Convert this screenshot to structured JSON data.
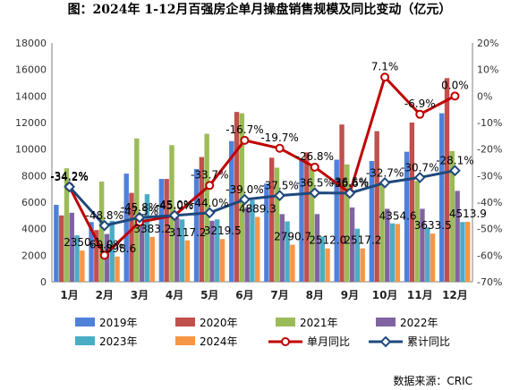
{
  "chart_data": {
    "type": "bar",
    "title": "图：2024年 1-12月百强房企单月操盘销售规模及同比变动（亿元）",
    "source": "数据来源：CRIC",
    "categories": [
      "1月",
      "2月",
      "3月",
      "4月",
      "5月",
      "6月",
      "7月",
      "8月",
      "9月",
      "10月",
      "11月",
      "12月"
    ],
    "ylim": [
      0,
      18000
    ],
    "yticks": [
      0,
      2000,
      4000,
      6000,
      8000,
      10000,
      12000,
      14000,
      16000,
      18000
    ],
    "y2lim": [
      -70,
      20
    ],
    "y2ticks": [
      "20%",
      "10%",
      "0%",
      "-10%",
      "-20%",
      "-30%",
      "-40%",
      "-50%",
      "-60%",
      "-70%"
    ],
    "series": [
      {
        "name": "2019年",
        "color": "#4f81d9",
        "values": [
          5800,
          4500,
          8150,
          7750,
          8500,
          10600,
          7400,
          9300,
          9200,
          9100,
          9800,
          12700
        ]
      },
      {
        "name": "2020年",
        "color": "#c0504d",
        "values": [
          5000,
          3900,
          6700,
          7750,
          9400,
          12800,
          9350,
          9750,
          11850,
          11350,
          12000,
          15350
        ]
      },
      {
        "name": "2021年",
        "color": "#9bbb59",
        "values": [
          8550,
          7550,
          10800,
          10300,
          11150,
          12700,
          8600,
          8700,
          8850,
          7300,
          7600,
          9850
        ]
      },
      {
        "name": "2022年",
        "color": "#8064a2",
        "values": [
          5200,
          3600,
          4800,
          4800,
          4600,
          5600,
          5100,
          5100,
          5600,
          5500,
          5500,
          6850
        ]
      },
      {
        "name": "2023年",
        "color": "#4bacc6",
        "values": [
          3500,
          4600,
          6600,
          4700,
          4700,
          6150,
          4550,
          3400,
          4000,
          4400,
          4100,
          4500
        ]
      },
      {
        "name": "2024年",
        "color": "#f79646",
        "values": [
          2350.1,
          1898.6,
          3383.2,
          3117.2,
          3219.5,
          4889.3,
          2790.7,
          2512.0,
          2517.2,
          4354.6,
          3633.5,
          4513.9
        ]
      }
    ],
    "bar_labels": [
      "2350.1",
      "1898.6",
      "3383.2",
      "3117.2",
      "3219.5",
      "4889.3",
      "2790.7",
      "2512.0",
      "2517.2",
      "4354.6",
      "3633.5",
      "4513.9"
    ],
    "lines": [
      {
        "name": "单月同比",
        "color": "#c00000",
        "values": [
          -34.2,
          -60.0,
          -47.5,
          -45.0,
          -33.7,
          -16.7,
          -19.7,
          -26.8,
          -36.5,
          7.1,
          -6.9,
          0.0
        ],
        "labels": [
          "-34.2%",
          "-60.0%",
          "-47.5%",
          "-45.0%",
          "-33.7%",
          "-16.7%",
          "-19.7%",
          "-26.8%",
          "-36.5%",
          "7.1%",
          "-6.9%",
          "0.0%"
        ]
      },
      {
        "name": "累计同比",
        "color": "#1f497d",
        "values": [
          -34.2,
          -48.8,
          -45.8,
          -45.0,
          -44.0,
          -39.0,
          -37.5,
          -36.5,
          -36.6,
          -32.7,
          -30.7,
          -28.1
        ],
        "labels": [
          "-34.2%",
          "-48.8%",
          "-45.8%",
          "-45.0%",
          "-44.0%",
          "-39.0%",
          "-37.5%",
          "-36.5%",
          "-36.6%",
          "-32.7%",
          "-30.7%",
          "-28.1%"
        ]
      }
    ],
    "grid": false,
    "legend": "bottom"
  }
}
